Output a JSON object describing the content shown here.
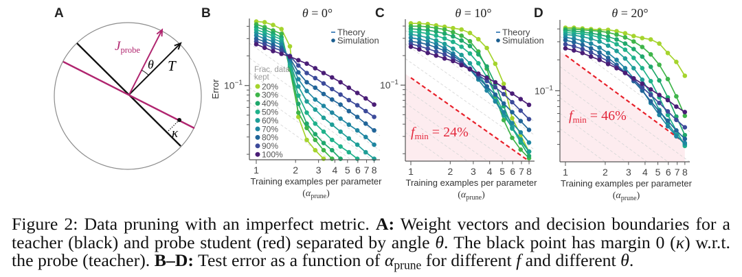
{
  "figure": {
    "panel_labels": [
      "A",
      "B",
      "C",
      "D"
    ],
    "diagram": {
      "probe_vector_label": {
        "symbol": "J",
        "subscript": "probe"
      },
      "teacher_vector_label": "T",
      "angle_label": "θ",
      "margin_label": "κ",
      "colors": {
        "teacher": "#111111",
        "probe": "#b0256f",
        "circle": "#8c8c8c",
        "point": "#111111"
      }
    }
  },
  "chart_data": [
    {
      "panel": "B",
      "type": "line",
      "title": {
        "symbol": "θ",
        "relation": " = 0°"
      },
      "theta_deg": 0,
      "xlabel": "Training examples per parameter",
      "xlabel_math": {
        "open": "(",
        "symbol": "α",
        "subscript": "prune",
        "close": ")"
      },
      "ylabel": "Error",
      "xscale": "log",
      "yscale": "log",
      "xlim": [
        1,
        8
      ],
      "ylim": [
        0.0176,
        0.48
      ],
      "xticks": [
        1,
        2,
        3,
        4,
        5,
        6,
        7,
        8
      ],
      "xtick_labels": [
        "1",
        "2",
        "3",
        "4",
        "5",
        "6",
        "7",
        "8"
      ],
      "ytick_major": 0.1,
      "ytick_label": {
        "base": "10",
        "exponent": "−1"
      },
      "yticks_minor": [
        0.02,
        0.03,
        0.04,
        0.05,
        0.06,
        0.07,
        0.08,
        0.09,
        0.2,
        0.3,
        0.4
      ],
      "grid": false,
      "legend": {
        "position": "top-right",
        "theory": "Theory",
        "simulation": "Simulation",
        "theory_color": "#3d7eb6",
        "simulation_color": "#1a5d8f"
      },
      "series_legend": {
        "position": "lower-left",
        "title": [
          "Frac. data",
          "kept"
        ]
      },
      "guide_lines": {
        "slope": -0.94,
        "intercepts": [
          0.24,
          0.17,
          0.12,
          0.085,
          0.06
        ]
      },
      "x": [
        1,
        1.16,
        1.346,
        1.561,
        1.811,
        2.101,
        2.438,
        2.828,
        3.281,
        3.807,
        4.416,
        5.124,
        5.944,
        6.897,
        8
      ],
      "series": [
        {
          "name": "20%",
          "color": "#a5d42d",
          "values": [
            0.447,
            0.44,
            0.413,
            0.375,
            0.25,
            0.048,
            0.028,
            0.022,
            0.018,
            null,
            null,
            null,
            null,
            null,
            null
          ]
        },
        {
          "name": "30%",
          "color": "#3fb54a",
          "values": [
            0.419,
            0.393,
            0.363,
            0.335,
            0.145,
            0.053,
            0.037,
            0.028,
            0.022,
            0.018,
            null,
            null,
            null,
            null,
            null
          ]
        },
        {
          "name": "40%",
          "color": "#1fa86c",
          "values": [
            0.393,
            0.369,
            0.34,
            0.309,
            0.155,
            0.065,
            0.041,
            0.032,
            0.026,
            0.022,
            0.018,
            null,
            null,
            null,
            null
          ]
        },
        {
          "name": "50%",
          "color": "#20b28b",
          "values": [
            0.369,
            0.346,
            0.319,
            0.294,
            0.162,
            0.079,
            0.053,
            0.041,
            0.034,
            0.028,
            0.024,
            0.021,
            0.018,
            null,
            null
          ]
        },
        {
          "name": "60%",
          "color": "#1e9e97",
          "values": [
            0.346,
            0.324,
            0.299,
            0.276,
            0.17,
            0.098,
            0.069,
            0.057,
            0.047,
            0.04,
            0.034,
            0.029,
            0.025,
            0.021,
            0.018
          ]
        },
        {
          "name": "70%",
          "color": "#1f86a1",
          "values": [
            0.324,
            0.299,
            0.28,
            0.259,
            0.181,
            0.116,
            0.088,
            0.072,
            0.062,
            0.053,
            0.046,
            0.04,
            0.035,
            0.03,
            0.025
          ]
        },
        {
          "name": "80%",
          "color": "#216599",
          "values": [
            0.299,
            0.28,
            0.259,
            0.242,
            0.19,
            0.136,
            0.108,
            0.095,
            0.082,
            0.072,
            0.064,
            0.055,
            0.048,
            0.041,
            0.035
          ]
        },
        {
          "name": "90%",
          "color": "#3c4a9a",
          "values": [
            0.28,
            0.263,
            0.242,
            0.227,
            0.2,
            0.16,
            0.134,
            0.119,
            0.105,
            0.092,
            0.081,
            0.071,
            0.063,
            0.055,
            0.048
          ]
        },
        {
          "name": "100%",
          "color": "#4a1d76",
          "values": [
            0.263,
            0.242,
            0.224,
            0.21,
            0.197,
            0.181,
            0.167,
            0.15,
            0.134,
            0.121,
            0.108,
            0.095,
            0.084,
            0.074,
            0.064
          ]
        }
      ]
    },
    {
      "panel": "C",
      "type": "line",
      "title": {
        "symbol": "θ",
        "relation": " = 10°"
      },
      "theta_deg": 10,
      "xlabel": "Training examples per parameter",
      "xlabel_math": {
        "open": "(",
        "symbol": "α",
        "subscript": "prune",
        "close": ")"
      },
      "ylabel": "",
      "xscale": "log",
      "yscale": "log",
      "xlim": [
        1,
        8
      ],
      "ylim": [
        0.0168,
        0.47
      ],
      "xticks": [
        1,
        2,
        3,
        4,
        5,
        6,
        7,
        8
      ],
      "xtick_labels": [
        "1",
        "2",
        "3",
        "4",
        "5",
        "6",
        "7",
        "8"
      ],
      "ytick_major": 0.1,
      "ytick_label": {
        "base": "10",
        "exponent": "−1"
      },
      "yticks_minor": [
        0.02,
        0.03,
        0.04,
        0.05,
        0.06,
        0.07,
        0.08,
        0.09,
        0.2,
        0.3,
        0.4
      ],
      "grid": false,
      "legend": {
        "position": "top-right",
        "theory": "Theory",
        "simulation": "Simulation",
        "theory_color": "#3d7eb6",
        "simulation_color": "#1a5d8f"
      },
      "fmin": {
        "symbol": "f",
        "subscript": "min",
        "value": " = 24%",
        "color": "#e3263a",
        "line_color": "#e8202a",
        "region_color": "#fdecef",
        "line": [
          [
            1,
            0.119
          ],
          [
            8,
            0.0168
          ]
        ]
      },
      "guide_lines": {
        "intercepts": [
          0.33,
          0.24,
          0.17,
          0.084,
          0.06,
          0.043,
          0.03
        ]
      },
      "x": [
        1,
        1.16,
        1.346,
        1.561,
        1.811,
        2.101,
        2.438,
        2.828,
        3.281,
        3.807,
        4.416,
        5.124,
        5.944,
        6.897,
        8
      ],
      "series": [
        {
          "name": "20%",
          "color": "#a5d42d",
          "values": [
            0.426,
            0.426,
            0.419,
            0.406,
            0.393,
            0.381,
            0.369,
            0.34,
            0.294,
            0.239,
            0.165,
            0.103,
            0.046,
            0.031,
            0.021
          ]
        },
        {
          "name": "30%",
          "color": "#3fb54a",
          "values": [
            0.399,
            0.399,
            0.393,
            0.381,
            0.369,
            0.346,
            0.319,
            0.28,
            0.22,
            0.147,
            0.077,
            0.044,
            0.029,
            0.022,
            0.018
          ]
        },
        {
          "name": "40%",
          "color": "#1fa86c",
          "values": [
            0.375,
            0.369,
            0.363,
            0.351,
            0.335,
            0.314,
            0.285,
            0.25,
            0.206,
            0.155,
            0.103,
            0.061,
            0.037,
            0.026,
            0.019
          ]
        },
        {
          "name": "50%",
          "color": "#20b28b",
          "values": [
            0.351,
            0.346,
            0.335,
            0.319,
            0.299,
            0.276,
            0.246,
            0.21,
            0.167,
            0.121,
            0.08,
            0.052,
            0.036,
            0.027,
            0.021
          ]
        },
        {
          "name": "60%",
          "color": "#1e9e97",
          "values": [
            0.329,
            0.319,
            0.304,
            0.285,
            0.263,
            0.235,
            0.203,
            0.167,
            0.129,
            0.097,
            0.069,
            0.049,
            0.037,
            0.028,
            0.021
          ]
        },
        {
          "name": "70%",
          "color": "#1f86a1",
          "values": [
            0.304,
            0.294,
            0.28,
            0.263,
            0.239,
            0.21,
            0.179,
            0.145,
            0.114,
            0.088,
            0.068,
            0.053,
            0.041,
            0.033,
            0.026
          ]
        },
        {
          "name": "80%",
          "color": "#216599",
          "values": [
            0.28,
            0.271,
            0.259,
            0.242,
            0.224,
            0.2,
            0.173,
            0.145,
            0.119,
            0.097,
            0.08,
            0.065,
            0.053,
            0.043,
            0.035
          ]
        },
        {
          "name": "90%",
          "color": "#3c4a9a",
          "values": [
            0.263,
            0.25,
            0.235,
            0.22,
            0.206,
            0.187,
            0.167,
            0.147,
            0.127,
            0.11,
            0.095,
            0.081,
            0.067,
            0.055,
            0.045
          ]
        },
        {
          "name": "100%",
          "color": "#4a1d76",
          "values": [
            0.246,
            0.231,
            0.213,
            0.2,
            0.187,
            0.176,
            0.16,
            0.145,
            0.131,
            0.119,
            0.107,
            0.094,
            0.082,
            0.072,
            0.063
          ]
        }
      ]
    },
    {
      "panel": "D",
      "type": "line",
      "title": {
        "symbol": "θ",
        "relation": " = 20°"
      },
      "theta_deg": 20,
      "xlabel": "Training examples per parameter",
      "xlabel_math": {
        "open": "(",
        "symbol": "α",
        "subscript": "prune",
        "close": ")"
      },
      "ylabel": "",
      "xscale": "log",
      "yscale": "log",
      "xlim": [
        1,
        8
      ],
      "ylim": [
        0.0203,
        0.49
      ],
      "xticks": [
        1,
        2,
        3,
        4,
        5,
        6,
        7,
        8
      ],
      "xtick_labels": [
        "1",
        "2",
        "3",
        "4",
        "5",
        "6",
        "7",
        "8"
      ],
      "ytick_major": 0.1,
      "ytick_label": {
        "base": "10",
        "exponent": "−1"
      },
      "yticks_minor": [
        0.03,
        0.04,
        0.05,
        0.06,
        0.07,
        0.08,
        0.09,
        0.2,
        0.3,
        0.4
      ],
      "grid": false,
      "fmin": {
        "symbol": "f",
        "subscript": "min",
        "value": " = 46%",
        "color": "#e3263a",
        "line_color": "#e8202a",
        "region_color": "#fdecef",
        "line": [
          [
            1,
            0.222
          ],
          [
            8,
            0.031
          ]
        ]
      },
      "guide_lines": {
        "intercepts": [
          0.31,
          0.157,
          0.11,
          0.078,
          0.055,
          0.039
        ]
      },
      "x": [
        1,
        1.16,
        1.346,
        1.561,
        1.811,
        2.101,
        2.438,
        2.828,
        3.281,
        3.807,
        4.416,
        5.124,
        5.944,
        6.897,
        8
      ],
      "series": [
        {
          "name": "20%",
          "color": "#a5d42d",
          "values": [
            0.411,
            0.411,
            0.404,
            0.398,
            0.392,
            0.392,
            0.38,
            0.363,
            0.341,
            0.326,
            0.316,
            0.288,
            0.233,
            0.191,
            0.14
          ]
        },
        {
          "name": "30%",
          "color": "#3fb54a",
          "values": [
            0.398,
            0.398,
            0.392,
            0.386,
            0.38,
            0.369,
            0.352,
            0.331,
            0.302,
            0.267,
            0.226,
            0.179,
            0.13,
            0.088,
            0.057
          ]
        },
        {
          "name": "40%",
          "color": "#1fa86c",
          "values": [
            0.386,
            0.38,
            0.374,
            0.363,
            0.352,
            0.336,
            0.316,
            0.288,
            0.255,
            0.215,
            0.171,
            0.126,
            0.086,
            0.056,
            0.037
          ]
        },
        {
          "name": "50%",
          "color": "#20b28b",
          "values": [
            0.369,
            0.363,
            0.358,
            0.347,
            0.331,
            0.311,
            0.284,
            0.251,
            0.209,
            0.166,
            0.124,
            0.086,
            0.058,
            0.041,
            0.029
          ]
        },
        {
          "name": "60%",
          "color": "#1e9e97",
          "values": [
            0.352,
            0.347,
            0.336,
            0.321,
            0.302,
            0.275,
            0.244,
            0.206,
            0.166,
            0.128,
            0.093,
            0.065,
            0.048,
            0.037,
            0.03
          ]
        },
        {
          "name": "70%",
          "color": "#1f86a1",
          "values": [
            0.331,
            0.321,
            0.307,
            0.288,
            0.263,
            0.233,
            0.2,
            0.166,
            0.132,
            0.102,
            0.076,
            0.058,
            0.045,
            0.036,
            0.031
          ]
        },
        {
          "name": "80%",
          "color": "#216599",
          "values": [
            0.311,
            0.297,
            0.28,
            0.259,
            0.236,
            0.209,
            0.179,
            0.151,
            0.124,
            0.1,
            0.079,
            0.063,
            0.051,
            0.041,
            0.034
          ]
        },
        {
          "name": "90%",
          "color": "#3c4a9a",
          "values": [
            0.284,
            0.271,
            0.255,
            0.236,
            0.215,
            0.194,
            0.171,
            0.149,
            0.128,
            0.108,
            0.091,
            0.076,
            0.063,
            0.052,
            0.044
          ]
        },
        {
          "name": "100%",
          "color": "#4a1d76",
          "values": [
            0.259,
            0.247,
            0.233,
            0.215,
            0.2,
            0.182,
            0.166,
            0.149,
            0.132,
            0.117,
            0.103,
            0.091,
            0.081,
            0.07,
            0.062
          ]
        }
      ]
    }
  ],
  "caption": {
    "lines": [
      [
        "Figure 2: Data pruning with an imperfect metric. ",
        "A:",
        " Weight vectors and decision boundaries for a"
      ],
      [
        "teacher (black) and probe student (red) separated by angle ",
        "θ",
        ". The black point has margin 0 (",
        "κ",
        ") w.r.t."
      ],
      [
        "the probe (teacher). ",
        "B–D:",
        " Test error as a function of ",
        "α",
        "prune",
        " for different ",
        "f",
        " and different ",
        "θ",
        "."
      ]
    ]
  }
}
